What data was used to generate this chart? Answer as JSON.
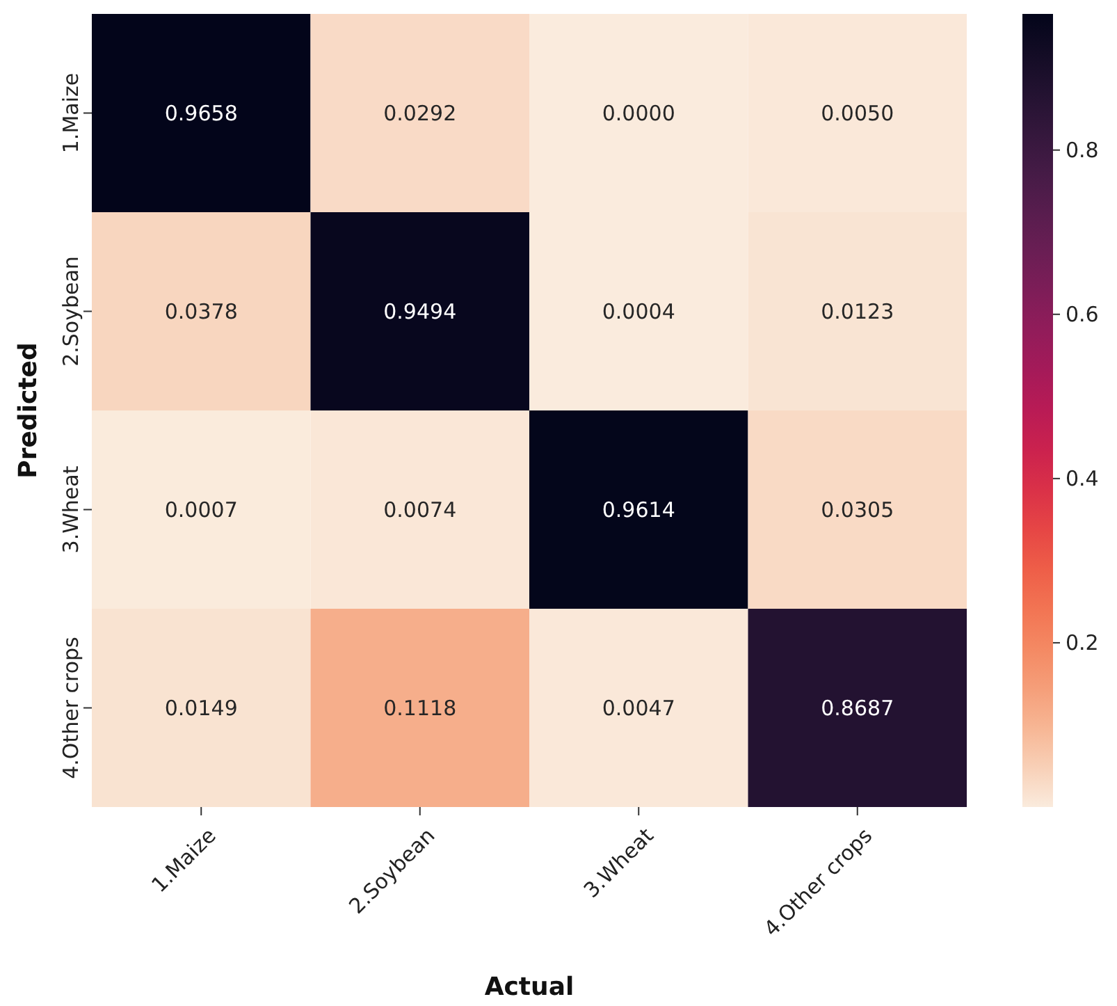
{
  "chart_data": {
    "type": "heatmap",
    "xlabel": "Actual",
    "ylabel": "Predicted",
    "categories": [
      "1.Maize",
      "2.Soybean",
      "3.Wheat",
      "4.Other crops"
    ],
    "y_categories": [
      "1.Maize",
      "2.Soybean",
      "3.Wheat",
      "4.Other crops"
    ],
    "cells": [
      [
        0.9658,
        0.0292,
        0.0,
        0.005
      ],
      [
        0.0378,
        0.9494,
        0.0004,
        0.0123
      ],
      [
        0.0007,
        0.0074,
        0.9614,
        0.0305
      ],
      [
        0.0149,
        0.1118,
        0.0047,
        0.8687
      ]
    ],
    "cell_labels": [
      [
        "0.9658",
        "0.0292",
        "0.0000",
        "0.0050"
      ],
      [
        "0.0378",
        "0.9494",
        "0.0004",
        "0.0123"
      ],
      [
        "0.0007",
        "0.0074",
        "0.9614",
        "0.0305"
      ],
      [
        "0.0149",
        "0.1118",
        "0.0047",
        "0.8687"
      ]
    ],
    "clim": [
      0,
      0.9658
    ],
    "cticks": [
      0.2,
      0.4,
      0.6,
      0.8
    ]
  }
}
